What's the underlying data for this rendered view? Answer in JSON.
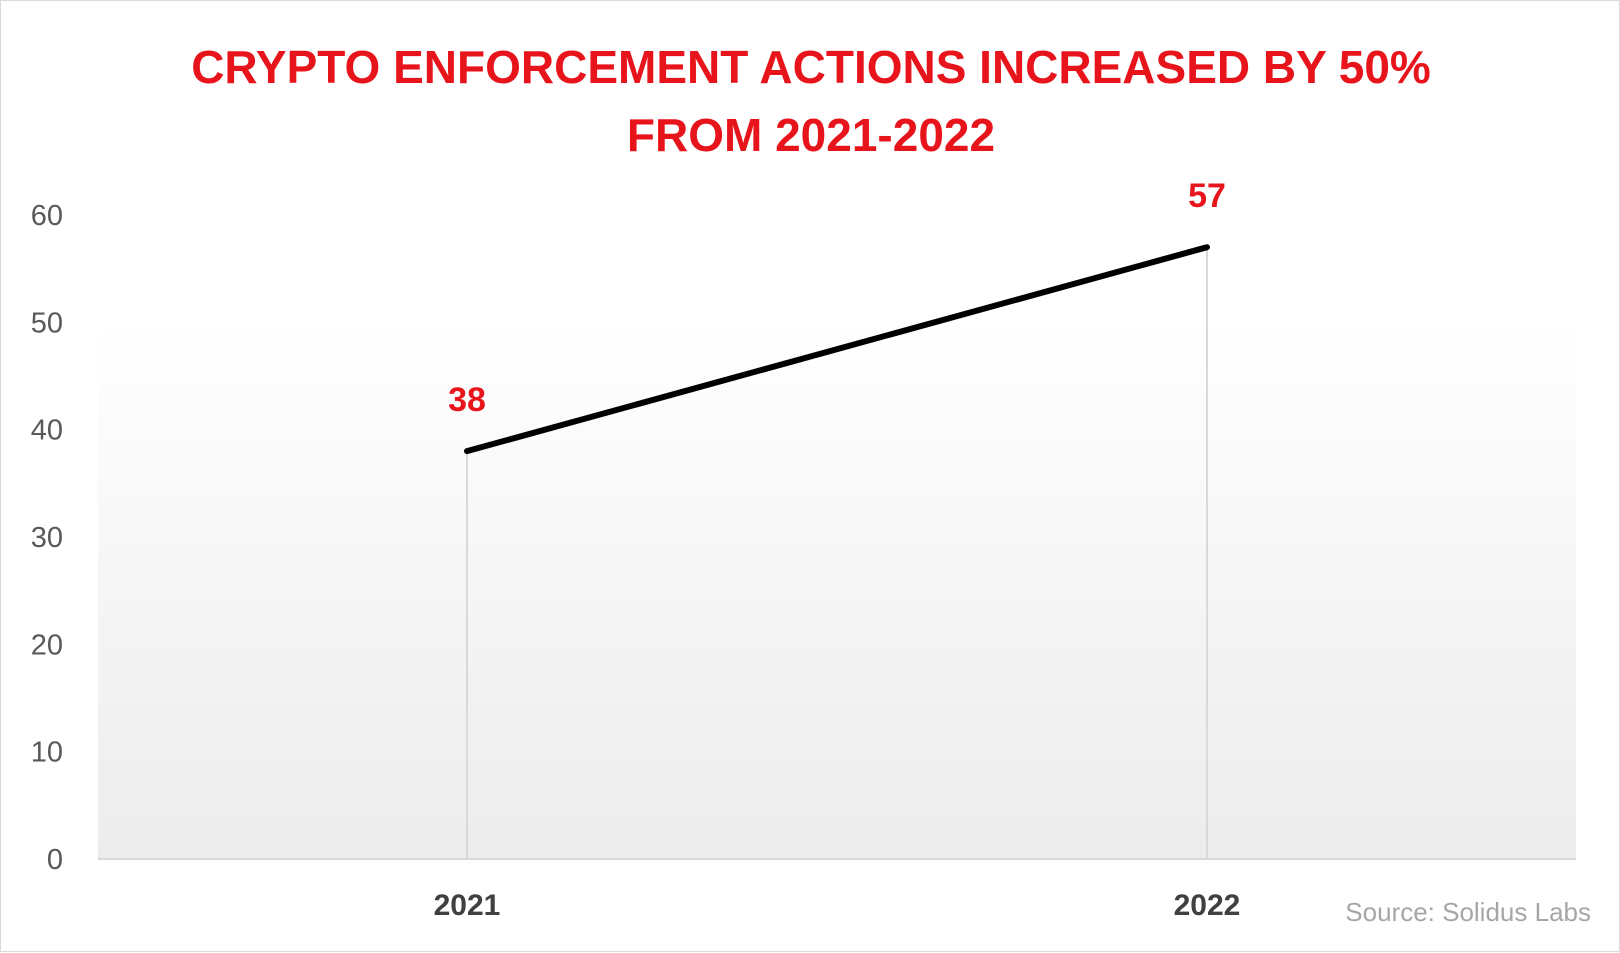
{
  "chart_data": {
    "type": "line",
    "title_lines": [
      "CRYPTO ENFORCEMENT ACTIONS INCREASED BY 50%",
      "FROM 2021-2022"
    ],
    "categories": [
      "2021",
      "2022"
    ],
    "series": [
      {
        "values": [
          38,
          57
        ]
      }
    ],
    "data_labels": [
      "38",
      "57"
    ],
    "y_ticks": [
      "0",
      "10",
      "20",
      "30",
      "40",
      "50",
      "60"
    ],
    "ylim": [
      0,
      60
    ],
    "xlabel": "",
    "ylabel": "",
    "grid": false,
    "drop_lines": true,
    "legend": "none",
    "source": "Source: Solidus Labs",
    "colors": {
      "title": "#e8141b",
      "data_label": "#e8141b",
      "line": "#000000",
      "axis_text": "#595959",
      "category_text": "#404040",
      "drop_line": "#d9d9d9",
      "source": "#a6a6a6"
    }
  }
}
